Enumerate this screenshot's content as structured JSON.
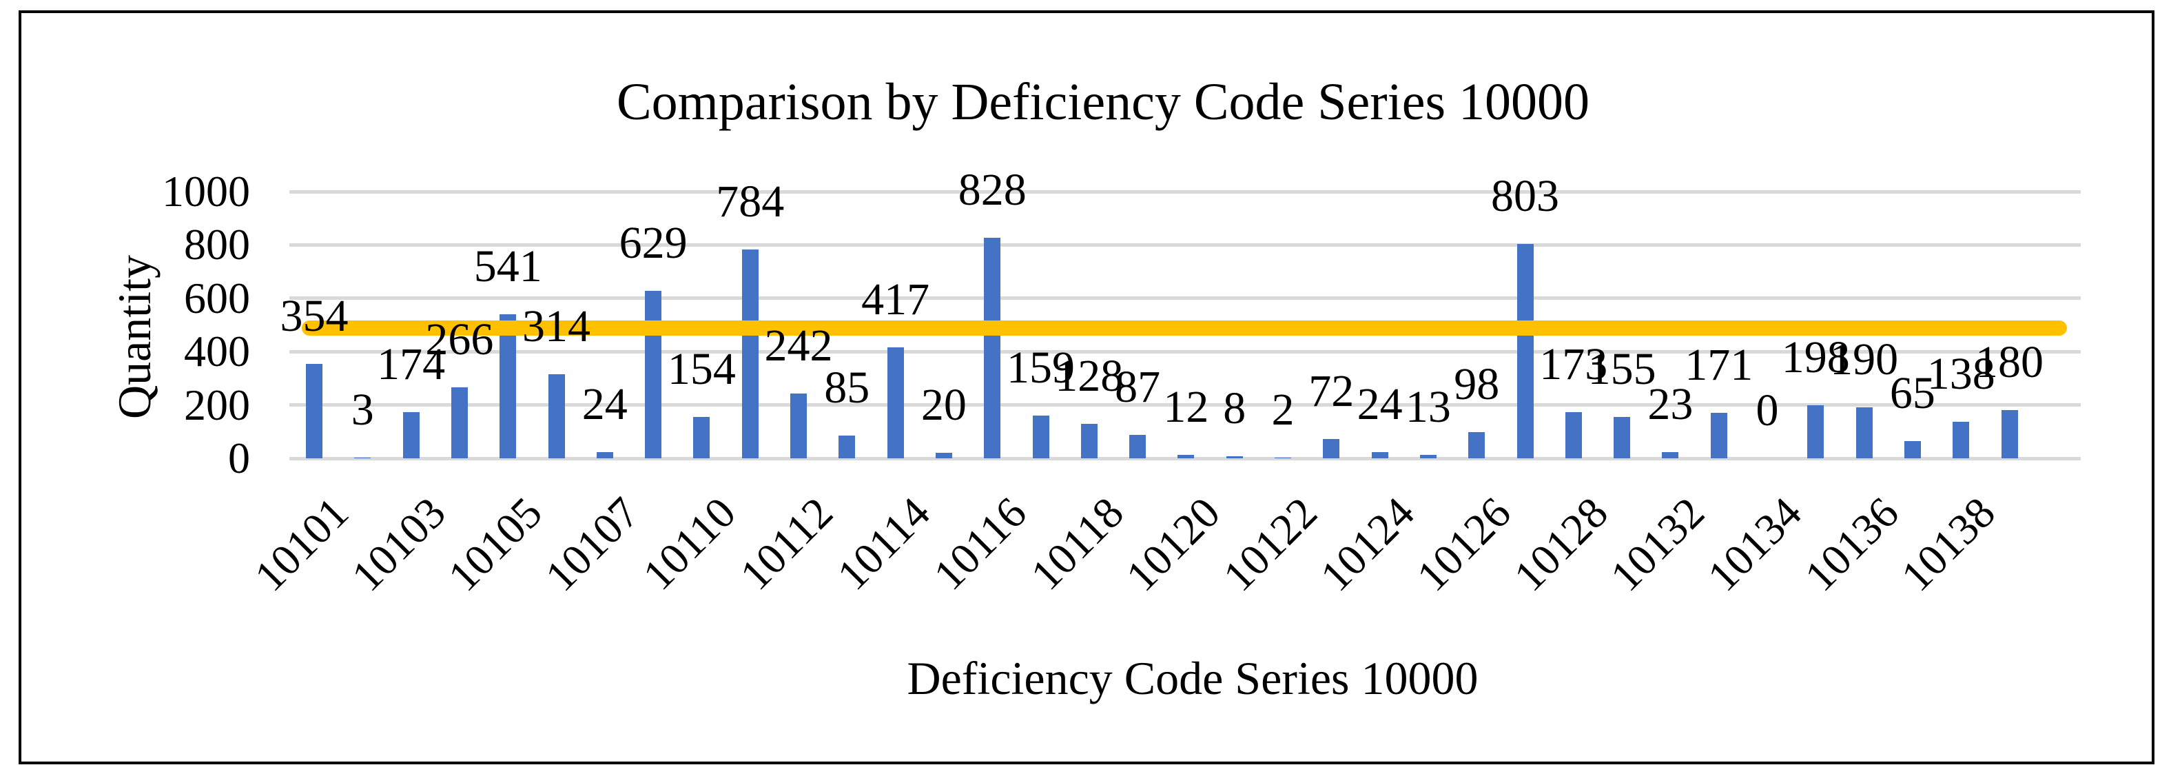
{
  "chart_data": {
    "type": "bar",
    "title": "Comparison by Deficiency Code Series 10000",
    "xlabel": "Deficiency Code Series 10000",
    "ylabel": "Quantity",
    "ylim": [
      0,
      1000
    ],
    "yticks": [
      0,
      200,
      400,
      600,
      800,
      1000
    ],
    "ytick_labels": [
      "0",
      "200",
      "400",
      "600",
      "800",
      "1000"
    ],
    "grid": true,
    "legend": "none",
    "bar_color": "#4472C4",
    "gridline_color": "#D9D9D9",
    "text_color": "#000000",
    "values": [
      354,
      3,
      174,
      266,
      541,
      314,
      24,
      629,
      154,
      784,
      242,
      85,
      417,
      20,
      828,
      159,
      128,
      87,
      12,
      8,
      2,
      72,
      24,
      13,
      98,
      803,
      173,
      155,
      23,
      171,
      0,
      198,
      190,
      65,
      138,
      180
    ],
    "data_labels": [
      "354",
      "3",
      "174",
      "266",
      "541",
      "314",
      "24",
      "629",
      "154",
      "784",
      "242",
      "85",
      "417",
      "20",
      "828",
      "159",
      "128",
      "87",
      "12",
      "8",
      "2",
      "72",
      "24",
      "13",
      "98",
      "803",
      "173",
      "155",
      "23",
      "171",
      "0",
      "198",
      "190",
      "65",
      "138",
      "180"
    ],
    "x_tick_labels": [
      "10101",
      "10103",
      "10105",
      "10107",
      "10110",
      "10112",
      "10114",
      "10116",
      "10118",
      "10120",
      "10122",
      "10124",
      "10126",
      "10128",
      "10132",
      "10134",
      "10136",
      "10138"
    ],
    "x_tick_every": 2,
    "threshold_line": {
      "approx_value": 500,
      "color": "#FFC000"
    }
  }
}
